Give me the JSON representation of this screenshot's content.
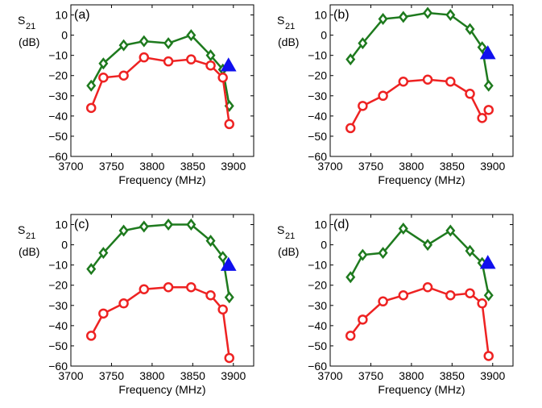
{
  "chart_data": [
    {
      "type": "line",
      "panel_label": "(a)",
      "xlabel": "Frequency (MHz)",
      "ylabel_main": "S",
      "ylabel_sub": "21",
      "ylabel_unit": "(dB)",
      "xlim": [
        3700,
        3925
      ],
      "ylim": [
        -60,
        15
      ],
      "xticks": [
        3700,
        3750,
        3800,
        3850,
        3900
      ],
      "xtick_labels": [
        "3700",
        "3750",
        "3800",
        "3850",
        "3900"
      ],
      "yticks": [
        10,
        0,
        -10,
        -20,
        -30,
        -40,
        -50,
        -60
      ],
      "ytick_labels": [
        "10",
        "0",
        "−10",
        "−20",
        "−30",
        "−40",
        "−50",
        "−60"
      ],
      "series": [
        {
          "marker": "diamond",
          "color": "#1e7a1e",
          "x": [
            3725,
            3740,
            3765,
            3790,
            3820,
            3848,
            3872,
            3887,
            3895
          ],
          "y": [
            -25,
            -14,
            -5,
            -3,
            -4,
            0,
            -10,
            -17,
            -35
          ]
        },
        {
          "marker": "circle",
          "color": "#ee2222",
          "x": [
            3725,
            3740,
            3765,
            3790,
            3820,
            3848,
            3872,
            3887,
            3895
          ],
          "y": [
            -36,
            -21,
            -20,
            -11,
            -13,
            -12,
            -15,
            -21,
            -44
          ]
        },
        {
          "marker": "triangle",
          "color": "#1010ee",
          "x": [
            3894
          ],
          "y": [
            -15
          ]
        }
      ]
    },
    {
      "type": "line",
      "panel_label": "(b)",
      "xlabel": "Frequency (MHz)",
      "ylabel_main": "S",
      "ylabel_sub": "21",
      "ylabel_unit": "(dB)",
      "xlim": [
        3700,
        3925
      ],
      "ylim": [
        -60,
        15
      ],
      "xticks": [
        3700,
        3750,
        3800,
        3850,
        3900
      ],
      "xtick_labels": [
        "3700",
        "3750",
        "3800",
        "3850",
        "3900"
      ],
      "yticks": [
        10,
        0,
        -10,
        -20,
        -30,
        -40,
        -50,
        -60
      ],
      "ytick_labels": [
        "10",
        "0",
        "−10",
        "−20",
        "−30",
        "−40",
        "−50",
        "−60"
      ],
      "series": [
        {
          "marker": "diamond",
          "color": "#1e7a1e",
          "x": [
            3725,
            3740,
            3765,
            3790,
            3820,
            3848,
            3872,
            3887,
            3895
          ],
          "y": [
            -12,
            -4,
            8,
            9,
            11,
            10,
            3,
            -6,
            -25
          ]
        },
        {
          "marker": "circle",
          "color": "#ee2222",
          "x": [
            3725,
            3740,
            3765,
            3790,
            3820,
            3848,
            3872,
            3887,
            3895
          ],
          "y": [
            -46,
            -35,
            -30,
            -23,
            -22,
            -23,
            -29,
            -41,
            -37
          ]
        },
        {
          "marker": "triangle",
          "color": "#1010ee",
          "x": [
            3894
          ],
          "y": [
            -9
          ]
        }
      ]
    },
    {
      "type": "line",
      "panel_label": "(c)",
      "xlabel": "Frequency (MHz)",
      "ylabel_main": "S",
      "ylabel_sub": "21",
      "ylabel_unit": "(dB)",
      "xlim": [
        3700,
        3925
      ],
      "ylim": [
        -60,
        15
      ],
      "xticks": [
        3700,
        3750,
        3800,
        3850,
        3900
      ],
      "xtick_labels": [
        "3700",
        "3750",
        "3800",
        "3850",
        "3900"
      ],
      "yticks": [
        10,
        0,
        -10,
        -20,
        -30,
        -40,
        -50,
        -60
      ],
      "ytick_labels": [
        "10",
        "0",
        "−10",
        "−20",
        "−30",
        "−40",
        "−50",
        "−60"
      ],
      "series": [
        {
          "marker": "diamond",
          "color": "#1e7a1e",
          "x": [
            3725,
            3740,
            3765,
            3790,
            3820,
            3848,
            3872,
            3887,
            3895
          ],
          "y": [
            -12,
            -4,
            7,
            9,
            10,
            10,
            2,
            -6,
            -26
          ]
        },
        {
          "marker": "circle",
          "color": "#ee2222",
          "x": [
            3725,
            3740,
            3765,
            3790,
            3820,
            3848,
            3872,
            3887,
            3895
          ],
          "y": [
            -45,
            -34,
            -29,
            -22,
            -21,
            -21,
            -25,
            -32,
            -56
          ]
        },
        {
          "marker": "triangle",
          "color": "#1010ee",
          "x": [
            3894
          ],
          "y": [
            -10
          ]
        }
      ]
    },
    {
      "type": "line",
      "panel_label": "(d)",
      "xlabel": "Frequency (MHz)",
      "ylabel_main": "S",
      "ylabel_sub": "21",
      "ylabel_unit": "(dB)",
      "xlim": [
        3700,
        3925
      ],
      "ylim": [
        -60,
        15
      ],
      "xticks": [
        3700,
        3750,
        3800,
        3850,
        3900
      ],
      "xtick_labels": [
        "3700",
        "3750",
        "3800",
        "3850",
        "3900"
      ],
      "yticks": [
        10,
        0,
        -10,
        -20,
        -30,
        -40,
        -50,
        -60
      ],
      "ytick_labels": [
        "10",
        "0",
        "−10",
        "−20",
        "−30",
        "−40",
        "−50",
        "−60"
      ],
      "series": [
        {
          "marker": "diamond",
          "color": "#1e7a1e",
          "x": [
            3725,
            3740,
            3765,
            3790,
            3820,
            3848,
            3872,
            3887,
            3895
          ],
          "y": [
            -16,
            -5,
            -4,
            8,
            0,
            7,
            -3,
            -9,
            -25
          ]
        },
        {
          "marker": "circle",
          "color": "#ee2222",
          "x": [
            3725,
            3740,
            3765,
            3790,
            3820,
            3848,
            3872,
            3887,
            3895
          ],
          "y": [
            -45,
            -37,
            -28,
            -25,
            -21,
            -25,
            -24,
            -29,
            -55
          ]
        },
        {
          "marker": "triangle",
          "color": "#1010ee",
          "x": [
            3894
          ],
          "y": [
            -9
          ]
        }
      ]
    }
  ]
}
